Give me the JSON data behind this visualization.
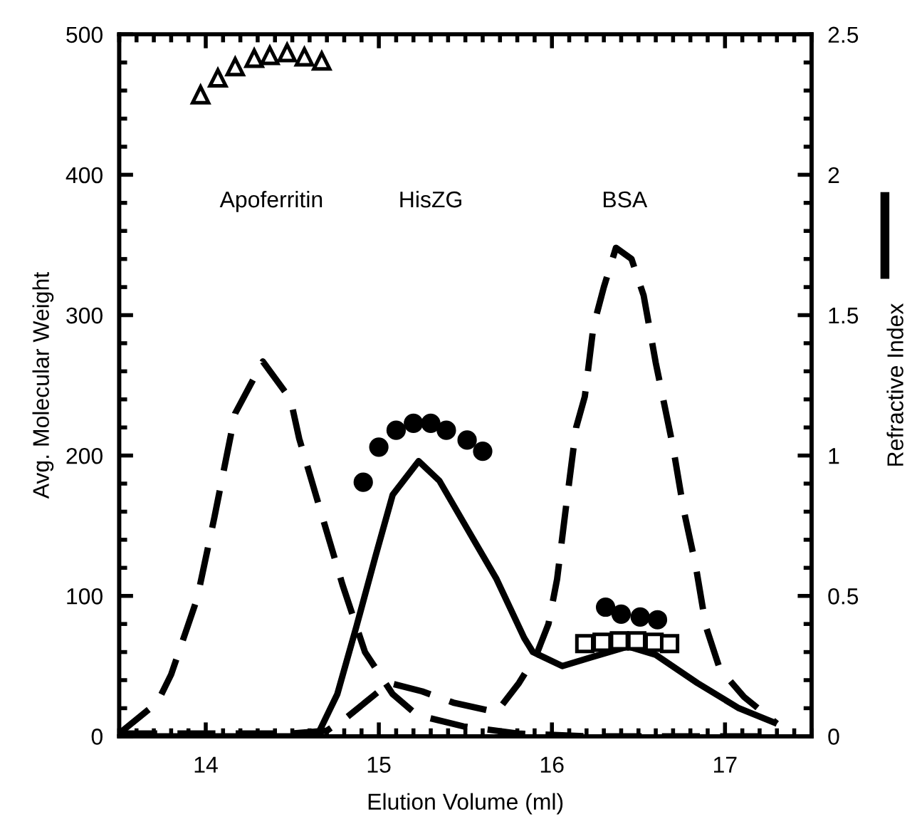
{
  "chart_data": {
    "type": "line",
    "xlabel": "Elution Volume (ml)",
    "ylabel": "Avg. Molecular Weight",
    "y2label": "Refractive Index",
    "xlim": [
      13.5,
      17.5
    ],
    "xticks": [
      14,
      15,
      16,
      17
    ],
    "ylim": [
      0,
      500
    ],
    "yticks": [
      0,
      100,
      200,
      300,
      400,
      500
    ],
    "y2lim": [
      0,
      2.5
    ],
    "y2ticks": [
      0,
      0.5,
      1,
      1.5,
      2,
      2.5
    ],
    "grid": false,
    "legend": false,
    "annotations": [
      "Apoferritin",
      "HisZG",
      "BSA"
    ],
    "series": [
      {
        "axis": "y2",
        "line_style": "dashed",
        "marker": "none",
        "color": "#000000",
        "x": [
          13.5,
          13.72,
          13.8,
          13.95,
          14.05,
          14.17,
          14.33,
          14.49,
          14.54,
          14.66,
          14.79,
          14.92,
          15.08,
          15.22,
          15.49,
          15.8,
          16.2,
          16.6,
          17.0,
          17.3
        ],
        "values": [
          0.01,
          0.12,
          0.22,
          0.49,
          0.78,
          1.15,
          1.335,
          1.2,
          1.06,
          0.81,
          0.54,
          0.3,
          0.15,
          0.076,
          0.035,
          0.01,
          0.0,
          0.0,
          0.0,
          0.0
        ]
      },
      {
        "axis": "y2",
        "line_style": "dashed",
        "marker": "none",
        "color": "#000000",
        "x": [
          13.5,
          14.0,
          14.5,
          14.7,
          14.82,
          15.06,
          15.25,
          15.43,
          15.68,
          15.81,
          15.91,
          15.98,
          16.03,
          16.08,
          16.14,
          16.19,
          16.24,
          16.3,
          16.37,
          16.46,
          16.53,
          16.6,
          16.65,
          16.7,
          16.76,
          16.83,
          16.89,
          16.97,
          17.11,
          17.3
        ],
        "values": [
          0.01,
          0.01,
          0.01,
          0.02,
          0.07,
          0.19,
          0.16,
          0.12,
          0.086,
          0.19,
          0.29,
          0.4,
          0.56,
          0.81,
          1.1,
          1.21,
          1.46,
          1.6,
          1.74,
          1.7,
          1.57,
          1.33,
          1.18,
          1.03,
          0.81,
          0.61,
          0.39,
          0.24,
          0.14,
          0.045
        ]
      },
      {
        "axis": "y2",
        "line_style": "solid",
        "marker": "none",
        "color": "#000000",
        "x": [
          13.5,
          14.0,
          14.5,
          14.65,
          14.76,
          14.87,
          14.98,
          15.08,
          15.23,
          15.35,
          15.51,
          15.68,
          15.84,
          15.89,
          16.06,
          16.22,
          16.44,
          16.6,
          16.84,
          17.08,
          17.3
        ],
        "values": [
          0.0,
          0.0,
          0.0,
          0.01,
          0.15,
          0.39,
          0.64,
          0.86,
          0.98,
          0.91,
          0.74,
          0.56,
          0.35,
          0.3,
          0.25,
          0.28,
          0.32,
          0.29,
          0.19,
          0.1,
          0.045
        ]
      },
      {
        "type": "scatter",
        "axis": "y",
        "marker": "triangle",
        "color": "#000000",
        "x": [
          13.97,
          14.07,
          14.17,
          14.28,
          14.37,
          14.47,
          14.57,
          14.67
        ],
        "values": [
          457,
          469,
          477,
          483,
          485,
          487,
          484,
          481
        ]
      },
      {
        "type": "scatter",
        "axis": "y",
        "marker": "circle",
        "color": "#000000",
        "x": [
          14.91,
          15.0,
          15.1,
          15.2,
          15.3,
          15.39,
          15.51,
          15.6
        ],
        "values": [
          181,
          206,
          218,
          223,
          223,
          218,
          211,
          203
        ]
      },
      {
        "type": "scatter",
        "axis": "y",
        "marker": "circle",
        "color": "#000000",
        "x": [
          16.31,
          16.4,
          16.51,
          16.61
        ],
        "values": [
          92,
          87,
          85,
          83
        ]
      },
      {
        "type": "scatter",
        "axis": "y",
        "marker": "square",
        "color": "#000000",
        "x": [
          16.19,
          16.29,
          16.39,
          16.49,
          16.59,
          16.68
        ],
        "values": [
          66,
          67,
          68,
          68,
          67,
          66
        ]
      }
    ]
  }
}
